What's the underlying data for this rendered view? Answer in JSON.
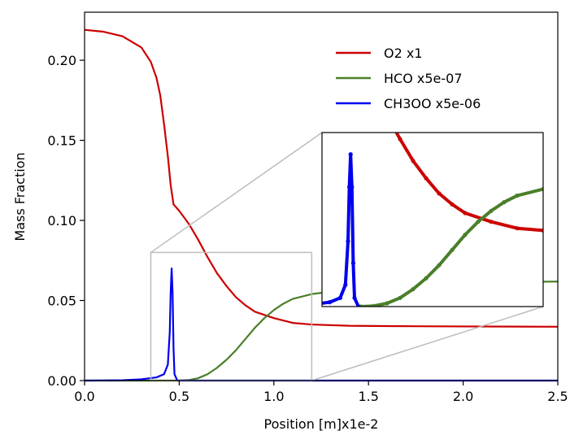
{
  "chart_data": {
    "type": "line",
    "title": "",
    "xlabel": "Position [m]x1e-2",
    "ylabel": "Mass Fraction",
    "xlim": [
      0.0,
      2.5
    ],
    "ylim": [
      0.0,
      0.23
    ],
    "x_ticks": [
      "0.0",
      "0.5",
      "1.0",
      "1.5",
      "2.0",
      "2.5"
    ],
    "y_ticks": [
      "0.00",
      "0.05",
      "0.10",
      "0.15",
      "0.20"
    ],
    "grid": false,
    "legend_position": "top-right",
    "series": [
      {
        "name": "O2 x1",
        "color": "#cc0000",
        "points": [
          [
            0.0,
            0.219
          ],
          [
            0.1,
            0.2178
          ],
          [
            0.2,
            0.215
          ],
          [
            0.3,
            0.208
          ],
          [
            0.35,
            0.199
          ],
          [
            0.38,
            0.189
          ],
          [
            0.4,
            0.178
          ],
          [
            0.42,
            0.16
          ],
          [
            0.44,
            0.14
          ],
          [
            0.455,
            0.122
          ],
          [
            0.47,
            0.11
          ],
          [
            0.5,
            0.106
          ],
          [
            0.55,
            0.098
          ],
          [
            0.6,
            0.088
          ],
          [
            0.65,
            0.077
          ],
          [
            0.7,
            0.067
          ],
          [
            0.75,
            0.059
          ],
          [
            0.8,
            0.052
          ],
          [
            0.85,
            0.047
          ],
          [
            0.9,
            0.043
          ],
          [
            1.0,
            0.039
          ],
          [
            1.1,
            0.036
          ],
          [
            1.2,
            0.035
          ],
          [
            1.4,
            0.0342
          ],
          [
            1.6,
            0.034
          ],
          [
            2.0,
            0.0338
          ],
          [
            2.5,
            0.0336
          ]
        ]
      },
      {
        "name": "HCO x5e-07",
        "color": "#4a7f2a",
        "points": [
          [
            0.0,
            0.0
          ],
          [
            0.5,
            0.0
          ],
          [
            0.55,
            0.0003
          ],
          [
            0.6,
            0.0015
          ],
          [
            0.65,
            0.004
          ],
          [
            0.7,
            0.008
          ],
          [
            0.75,
            0.013
          ],
          [
            0.8,
            0.019
          ],
          [
            0.85,
            0.026
          ],
          [
            0.9,
            0.033
          ],
          [
            0.95,
            0.039
          ],
          [
            1.0,
            0.044
          ],
          [
            1.05,
            0.048
          ],
          [
            1.1,
            0.051
          ],
          [
            1.2,
            0.054
          ],
          [
            1.4,
            0.057
          ],
          [
            1.6,
            0.059
          ],
          [
            1.8,
            0.06
          ],
          [
            2.0,
            0.061
          ],
          [
            2.2,
            0.0615
          ],
          [
            2.5,
            0.0618
          ]
        ]
      },
      {
        "name": "CH3OO x5e-06",
        "color": "#0000ee",
        "points": [
          [
            0.0,
            0.0
          ],
          [
            0.2,
            0.0002
          ],
          [
            0.3,
            0.0008
          ],
          [
            0.38,
            0.002
          ],
          [
            0.42,
            0.004
          ],
          [
            0.44,
            0.01
          ],
          [
            0.45,
            0.03
          ],
          [
            0.455,
            0.055
          ],
          [
            0.46,
            0.07
          ],
          [
            0.465,
            0.055
          ],
          [
            0.47,
            0.02
          ],
          [
            0.475,
            0.004
          ],
          [
            0.49,
            0.0
          ],
          [
            2.5,
            0.0
          ]
        ]
      }
    ],
    "inset": {
      "xlim": [
        0.35,
        1.2
      ],
      "ylim": [
        0.0,
        0.08
      ]
    }
  }
}
